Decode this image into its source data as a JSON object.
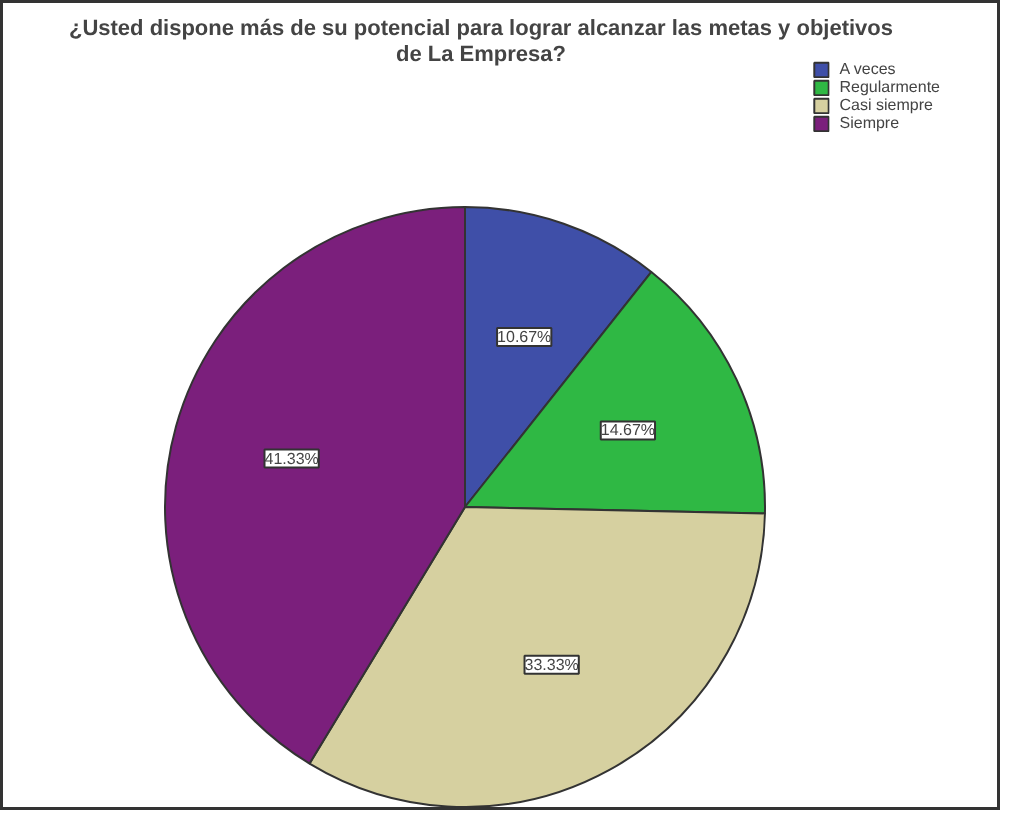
{
  "chart_data": {
    "type": "pie",
    "title": "¿Usted dispone más de su potencial para lograr alcanzar las metas y objetivos de La Empresa?",
    "categories": [
      "A veces",
      "Regularmente",
      "Casi siempre",
      "Siempre"
    ],
    "values": [
      10.67,
      14.67,
      33.33,
      41.33
    ],
    "colors": [
      "#3f4fa8",
      "#2fb844",
      "#d6d0a0",
      "#7b1f7c"
    ],
    "value_labels": [
      "10.67%",
      "14.67%",
      "33.33%",
      "41.33%"
    ],
    "legend": "top right"
  }
}
